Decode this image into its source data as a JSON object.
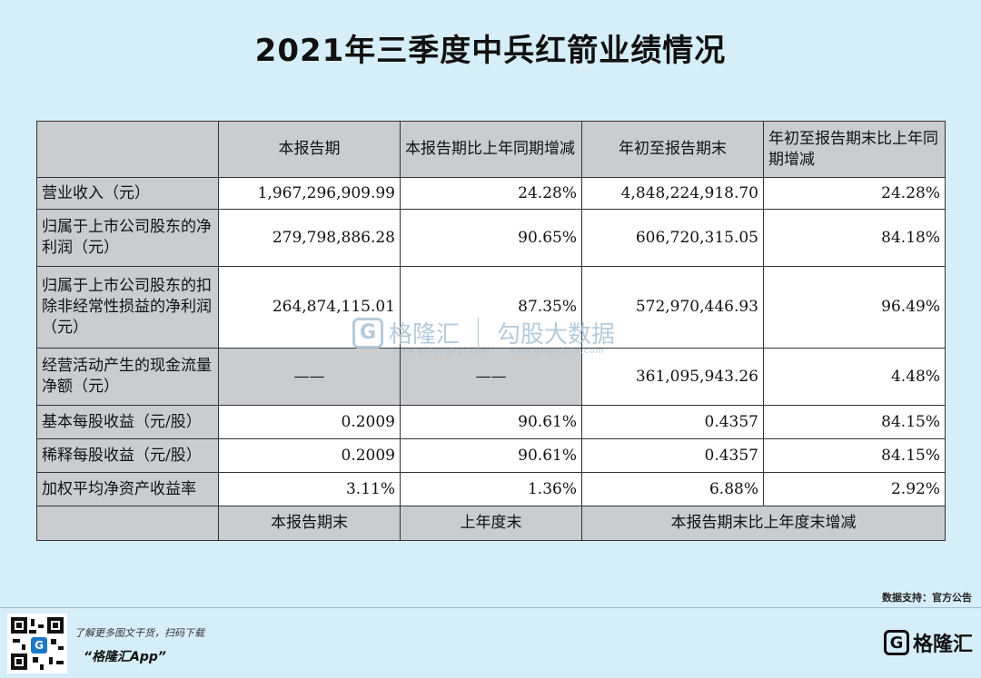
{
  "title": "2021年三季度中兵红箭业绩情况",
  "table": {
    "headers": [
      "",
      "本报告期",
      "本报告期比上年同期增减",
      "年初至报告期末",
      "年初至报告期末比上年同期增减"
    ],
    "rows": [
      {
        "label": "营业收入（元）",
        "v1": "1,967,296,909.99",
        "v2": "24.28%",
        "v3": "4,848,224,918.70",
        "v4": "24.28%"
      },
      {
        "label": "归属于上市公司股东的净利润（元）",
        "v1": "279,798,886.28",
        "v2": "90.65%",
        "v3": "606,720,315.05",
        "v4": "84.18%"
      },
      {
        "label": "归属于上市公司股东的扣除非经常性损益的净利润（元）",
        "v1": "264,874,115.01",
        "v2": "87.35%",
        "v3": "572,970,446.93",
        "v4": "96.49%"
      },
      {
        "label": "经营活动产生的现金流量净额（元）",
        "v1": "——",
        "v2": "——",
        "v3": "361,095,943.26",
        "v4": "4.48%"
      },
      {
        "label": "基本每股收益（元/股）",
        "v1": "0.2009",
        "v2": "90.61%",
        "v3": "0.4357",
        "v4": "84.15%"
      },
      {
        "label": "稀释每股收益（元/股）",
        "v1": "0.2009",
        "v2": "90.61%",
        "v3": "0.4357",
        "v4": "84.15%"
      },
      {
        "label": "加权平均净资产收益率",
        "v1": "3.11%",
        "v2": "1.36%",
        "v3": "6.88%",
        "v4": "2.92%"
      }
    ],
    "bottom_headers": [
      "",
      "本报告期末",
      "上年度末",
      "本报告期末比上年度末增减"
    ]
  },
  "watermark": {
    "brand": "格隆汇",
    "logo_letter": "G",
    "partner": "勾股大数据",
    "site1": "www.gelonghui.com",
    "site2": "www.gogudata.com"
  },
  "source": "数据支持：官方公告",
  "promo": {
    "line1": "了解更多图文干货，扫码下载",
    "line2": "“格隆汇App”"
  },
  "brand": {
    "name": "格隆汇",
    "logo_letter": "G"
  },
  "colors": {
    "background": "#d6eef8",
    "cell_gray": "#c9cdd0",
    "cell_white": "#ffffff"
  }
}
